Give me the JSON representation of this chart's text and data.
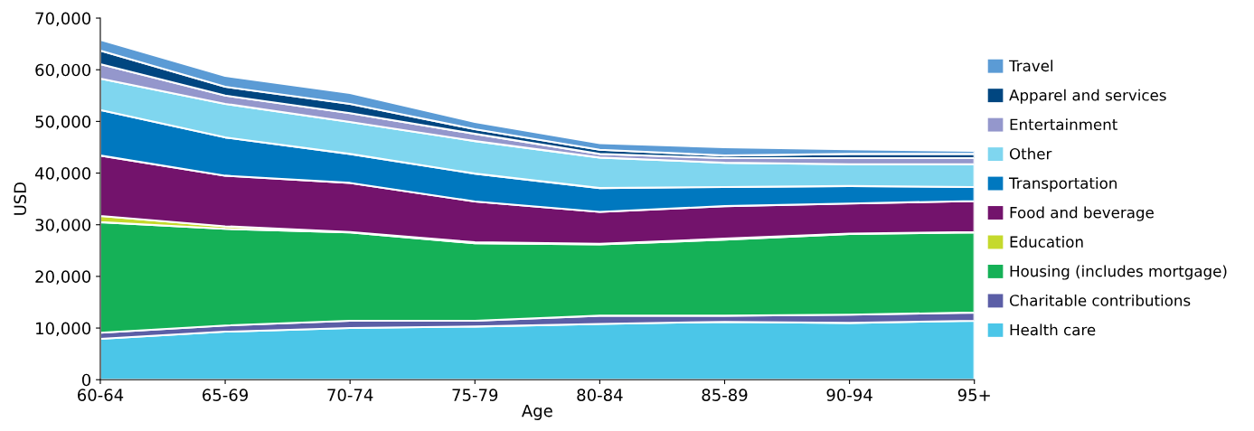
{
  "chart_data": {
    "type": "area",
    "stacked": true,
    "xlabel": "Age",
    "ylabel": "USD",
    "categories": [
      "60-64",
      "65-69",
      "70-74",
      "75-79",
      "80-84",
      "85-89",
      "90-94",
      "95+"
    ],
    "ylim": [
      0,
      70000
    ],
    "yticks": [
      {
        "value": 0,
        "label": "0"
      },
      {
        "value": 10000,
        "label": "10,000"
      },
      {
        "value": 20000,
        "label": "20,000"
      },
      {
        "value": 30000,
        "label": "30,000"
      },
      {
        "value": 40000,
        "label": "40,000"
      },
      {
        "value": 50000,
        "label": "50,000"
      },
      {
        "value": 60000,
        "label": "60,000"
      },
      {
        "value": 70000,
        "label": "70,000"
      }
    ],
    "grid": false,
    "legend": "right",
    "series": [
      {
        "name": "Health care",
        "color": "#4bc6e8",
        "values": [
          7900,
          9300,
          10000,
          10300,
          10800,
          11200,
          11000,
          11400
        ]
      },
      {
        "name": "Charitable contributions",
        "color": "#5b5ea6",
        "values": [
          1200,
          1200,
          1400,
          1100,
          1600,
          1200,
          1600,
          1600
        ]
      },
      {
        "name": "Housing (includes mortgage)",
        "color": "#15b157",
        "values": [
          21400,
          18700,
          17100,
          15000,
          13800,
          14700,
          15600,
          15500
        ]
      },
      {
        "name": "Education",
        "color": "#c5d92d",
        "values": [
          1200,
          500,
          100,
          200,
          100,
          200,
          100,
          100
        ]
      },
      {
        "name": "Food and beverage",
        "color": "#73136c",
        "values": [
          11700,
          9800,
          9500,
          7900,
          6200,
          6300,
          5800,
          6000
        ]
      },
      {
        "name": "Transportation",
        "color": "#0078bf",
        "values": [
          8800,
          7400,
          5600,
          5400,
          4600,
          3700,
          3400,
          2700
        ]
      },
      {
        "name": "Other",
        "color": "#7fd6ef",
        "values": [
          6100,
          6500,
          6200,
          6300,
          5900,
          4700,
          4200,
          4400
        ]
      },
      {
        "name": "Entertainment",
        "color": "#9497cc",
        "values": [
          2800,
          1600,
          1700,
          1400,
          700,
          900,
          1200,
          1200
        ]
      },
      {
        "name": "Apparel and services",
        "color": "#004680",
        "values": [
          2600,
          1700,
          1800,
          900,
          800,
          500,
          800,
          800
        ]
      },
      {
        "name": "Travel",
        "color": "#5b9bd5",
        "values": [
          2100,
          2100,
          2100,
          1400,
          1300,
          1600,
          900,
          600
        ]
      }
    ]
  }
}
